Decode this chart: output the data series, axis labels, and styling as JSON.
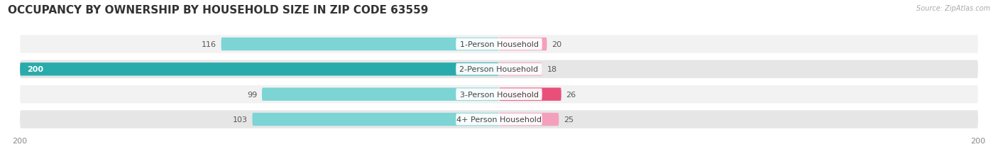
{
  "title": "OCCUPANCY BY OWNERSHIP BY HOUSEHOLD SIZE IN ZIP CODE 63559",
  "source": "Source: ZipAtlas.com",
  "categories": [
    "1-Person Household",
    "2-Person Household",
    "3-Person Household",
    "4+ Person Household"
  ],
  "owner_values": [
    116,
    200,
    99,
    103
  ],
  "renter_values": [
    20,
    18,
    26,
    25
  ],
  "owner_color_normal": "#7DD4D4",
  "owner_color_max": "#2AABAB",
  "renter_color_normal": "#F4A0BC",
  "renter_color_max": "#E8507A",
  "row_bg_light": "#F2F2F2",
  "row_bg_dark": "#E6E6E6",
  "x_max": 200,
  "x_min": -200,
  "title_fontsize": 11,
  "label_fontsize": 8,
  "value_fontsize": 8,
  "axis_fontsize": 8
}
